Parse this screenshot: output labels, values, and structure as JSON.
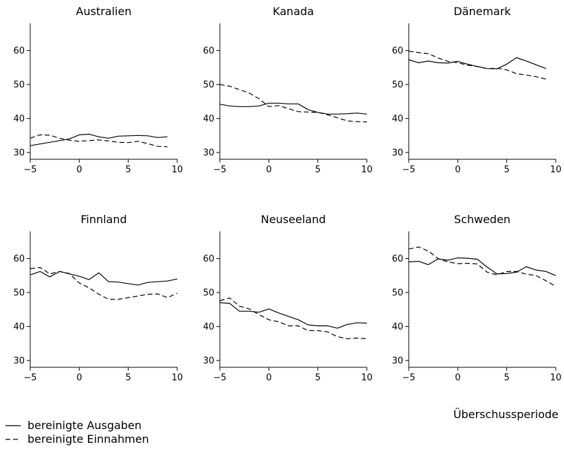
{
  "chart_data": {
    "type": "line",
    "xlabel": "Überschussperiode",
    "legend": [
      "bereinigte Ausgaben",
      "bereinigte Einnahmen"
    ],
    "xlim": [
      -5,
      10
    ],
    "ylim": [
      28,
      68
    ],
    "xticks": [
      -5,
      0,
      5,
      10
    ],
    "yticks": [
      30,
      40,
      50,
      60
    ],
    "x": [
      -5,
      -4,
      -3,
      -2,
      -1,
      0,
      1,
      2,
      3,
      4,
      5,
      6,
      7,
      8,
      9,
      10
    ],
    "panels": [
      {
        "title": "Australien",
        "series": [
          {
            "name": "bereinigte Ausgaben",
            "style": "solid",
            "values": [
              32.0,
              32.5,
              33.0,
              33.5,
              34.0,
              35.2,
              35.4,
              34.6,
              34.2,
              34.8,
              34.9,
              35.0,
              34.9,
              34.4,
              34.6,
              null
            ]
          },
          {
            "name": "bereinigte Einnahmen",
            "style": "dashed",
            "values": [
              34.2,
              35.2,
              35.1,
              34.2,
              33.6,
              33.3,
              33.5,
              33.7,
              33.4,
              33.0,
              32.9,
              33.3,
              32.6,
              31.8,
              31.7,
              null
            ]
          }
        ]
      },
      {
        "title": "Kanada",
        "series": [
          {
            "name": "bereinigte Ausgaben",
            "style": "solid",
            "values": [
              44.2,
              43.7,
              43.5,
              43.5,
              43.7,
              44.5,
              44.5,
              44.3,
              44.3,
              42.6,
              41.8,
              41.3,
              41.3,
              41.4,
              41.6,
              41.3
            ]
          },
          {
            "name": "bereinigte Einnahmen",
            "style": "dashed",
            "values": [
              50.0,
              49.5,
              48.5,
              47.5,
              45.8,
              43.5,
              43.8,
              42.9,
              42.0,
              41.9,
              41.8,
              41.1,
              40.2,
              39.3,
              39.1,
              39.0
            ]
          }
        ]
      },
      {
        "title": "Dänemark",
        "series": [
          {
            "name": "bereinigte Ausgaben",
            "style": "solid",
            "values": [
              57.3,
              56.4,
              56.9,
              56.4,
              56.3,
              56.8,
              56.0,
              55.3,
              54.7,
              54.6,
              56.0,
              57.9,
              56.9,
              55.8,
              54.7,
              null
            ]
          },
          {
            "name": "bereinigte Einnahmen",
            "style": "dashed",
            "values": [
              59.8,
              59.4,
              59.1,
              57.8,
              56.8,
              56.4,
              55.7,
              55.3,
              54.7,
              54.8,
              54.3,
              53.2,
              52.8,
              52.3,
              51.6,
              null
            ]
          }
        ]
      },
      {
        "title": "Finnland",
        "series": [
          {
            "name": "bereinigte Ausgaben",
            "style": "solid",
            "values": [
              55.2,
              56.2,
              54.6,
              56.2,
              55.5,
              54.8,
              53.8,
              55.8,
              53.2,
              53.1,
              52.6,
              52.2,
              53.0,
              53.2,
              53.4,
              54.0
            ]
          },
          {
            "name": "bereinigte Einnahmen",
            "style": "dashed",
            "values": [
              57.0,
              57.4,
              55.5,
              56.2,
              55.6,
              52.8,
              51.4,
              49.5,
              48.0,
              48.0,
              48.5,
              49.0,
              49.5,
              49.6,
              48.5,
              49.8
            ]
          }
        ]
      },
      {
        "title": "Neuseeland",
        "series": [
          {
            "name": "bereinigte Ausgaben",
            "style": "solid",
            "values": [
              47.0,
              46.8,
              44.5,
              44.5,
              44.2,
              45.2,
              44.0,
              43.0,
              42.0,
              40.5,
              40.2,
              40.2,
              39.5,
              40.6,
              41.1,
              41.0
            ]
          },
          {
            "name": "bereinigte Einnahmen",
            "style": "dashed",
            "values": [
              47.6,
              48.4,
              46.0,
              45.2,
              43.5,
              42.0,
              41.4,
              40.2,
              40.2,
              38.8,
              38.8,
              38.4,
              37.0,
              36.4,
              36.6,
              36.4
            ]
          }
        ]
      },
      {
        "title": "Schweden",
        "series": [
          {
            "name": "bereinigte Ausgaben",
            "style": "solid",
            "values": [
              59.0,
              59.2,
              58.2,
              59.9,
              59.5,
              60.2,
              60.1,
              59.8,
              57.5,
              55.5,
              55.6,
              56.0,
              57.6,
              56.6,
              56.2,
              55.0
            ]
          },
          {
            "name": "bereinigte Einnahmen",
            "style": "dashed",
            "values": [
              62.8,
              63.4,
              62.2,
              60.0,
              59.0,
              58.5,
              58.6,
              58.4,
              56.0,
              55.2,
              56.2,
              56.2,
              55.4,
              55.0,
              53.5,
              51.8
            ]
          }
        ]
      }
    ]
  }
}
